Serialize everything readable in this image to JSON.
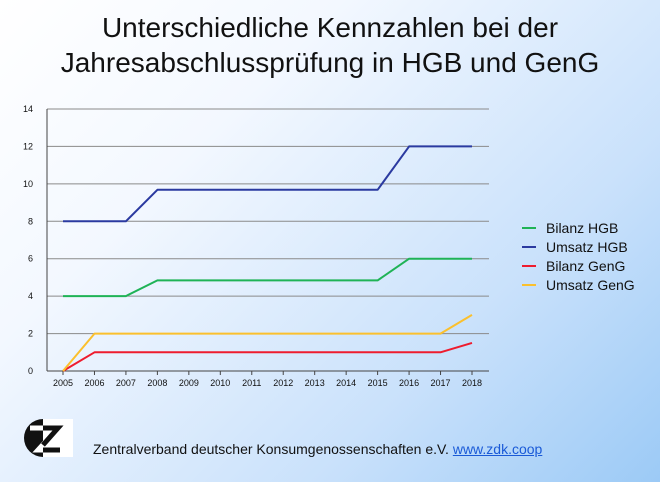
{
  "page": {
    "title_line1": "Unterschiedliche Kennzahlen bei der",
    "title_line2": "Jahresabschlussprüfung in HGB und GenG"
  },
  "footer": {
    "org": "Zentralverband deutscher Konsumgenossenschaften e.V.",
    "link": "www.zdk.coop"
  },
  "logo": {
    "letter": "Z"
  },
  "chart_data": {
    "type": "line",
    "x": [
      "2005",
      "2006",
      "2007",
      "2008",
      "2009",
      "2010",
      "2011",
      "2012",
      "2013",
      "2014",
      "2015",
      "2016",
      "2017",
      "2018"
    ],
    "ylim": [
      0,
      14
    ],
    "yticks": [
      "0",
      "2",
      "4",
      "6",
      "8",
      "10",
      "12",
      "14"
    ],
    "grid": true,
    "legend_position": "right",
    "series": [
      {
        "name": "Bilanz HGB",
        "color": "#1fb356",
        "values": [
          4,
          4,
          4,
          4.84,
          4.84,
          4.84,
          4.84,
          4.84,
          4.84,
          4.84,
          4.84,
          6,
          6,
          6
        ]
      },
      {
        "name": "Umsatz HGB",
        "color": "#2b3aa0",
        "values": [
          8,
          8,
          8,
          9.68,
          9.68,
          9.68,
          9.68,
          9.68,
          9.68,
          9.68,
          9.68,
          12,
          12,
          12
        ]
      },
      {
        "name": "Bilanz GenG",
        "color": "#ee1c2e",
        "values": [
          0,
          1,
          1,
          1,
          1,
          1,
          1,
          1,
          1,
          1,
          1,
          1,
          1,
          1.5
        ]
      },
      {
        "name": "Umsatz GenG",
        "color": "#fbc02d",
        "values": [
          0,
          2,
          2,
          2,
          2,
          2,
          2,
          2,
          2,
          2,
          2,
          2,
          2,
          3
        ]
      }
    ]
  }
}
